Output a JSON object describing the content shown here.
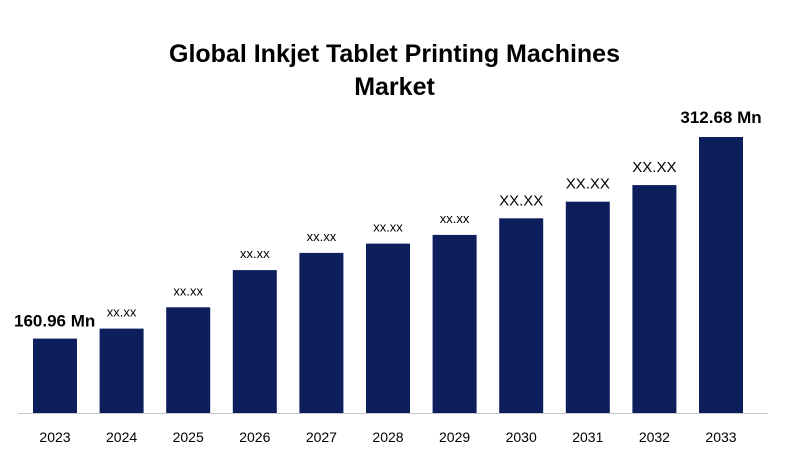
{
  "chart_data": {
    "type": "bar",
    "title_line1": "Global Inkjet Tablet Printing Machines",
    "title_line2": "Market",
    "categories": [
      "2023",
      "2024",
      "2025",
      "2026",
      "2027",
      "2028",
      "2029",
      "2030",
      "2031",
      "2032",
      "2033"
    ],
    "values": [
      160.96,
      168.5,
      184.5,
      212.5,
      225.5,
      232.5,
      239.0,
      251.5,
      264.0,
      276.5,
      312.68
    ],
    "data_labels": [
      "160.96 Mn",
      "xx.xx",
      "xx.xx",
      "xx.xx",
      "xx.xx",
      "xx.xx",
      "xx.xx",
      "XX.XX",
      "XX.XX",
      "XX.XX",
      "312.68 Mn"
    ],
    "label_emphasis": [
      "bold",
      "small",
      "small",
      "small",
      "small",
      "small",
      "small",
      "large",
      "large",
      "large",
      "bold"
    ],
    "ylim": [
      105,
      312.68
    ],
    "grid": false,
    "legend": "none",
    "bar_color": "#0c1f5c",
    "axis_color": "#c8c8c8"
  }
}
